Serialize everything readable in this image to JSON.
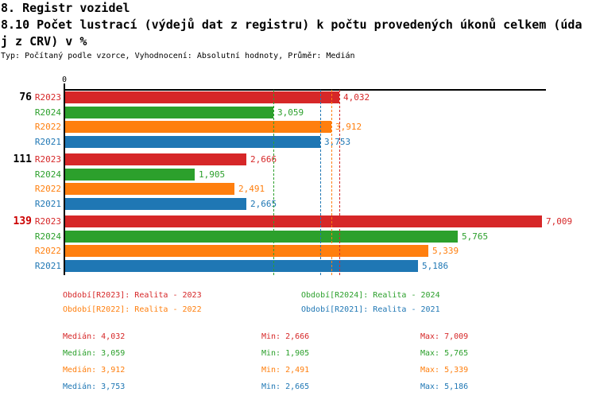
{
  "header": {
    "title": "8. Registr vozidel",
    "subtitle_line1": "8.10 Počet lustrací (výdejů dat z registru) k počtu provedených úkonů celkem (úda",
    "subtitle_line2": "j z CRV) v %",
    "meta": "Typ: Počítaný podle vzorce, Vyhodnocení: Absolutní hodnoty, Průměr: Medián"
  },
  "chart_data": {
    "type": "bar",
    "orientation": "horizontal",
    "title": "8.10 Počet lustrací (výdejů dat z registru) k počtu provedených úkonů celkem (údaj z CRV) v %",
    "x_axis": {
      "origin_label": "0",
      "min": 0,
      "max": 7070,
      "grid": false
    },
    "series": [
      {
        "id": "R2023",
        "name": "Realita - 2023",
        "color": "#d62728",
        "median": 4032,
        "min": 2666,
        "max": 7009
      },
      {
        "id": "R2024",
        "name": "Realita - 2024",
        "color": "#2ca02c",
        "median": 3059,
        "min": 1905,
        "max": 5765
      },
      {
        "id": "R2022",
        "name": "Realita - 2022",
        "color": "#ff7f0e",
        "median": 3912,
        "min": 2491,
        "max": 5339
      },
      {
        "id": "R2021",
        "name": "Realita - 2021",
        "color": "#1f77b4",
        "median": 3753,
        "min": 2665,
        "max": 5186
      }
    ],
    "categories": [
      "76",
      "111",
      "139"
    ],
    "category_colors": [
      "#000000",
      "#000000",
      "#cc0000"
    ],
    "values": [
      [
        4032,
        3059,
        3912,
        3753
      ],
      [
        2666,
        1905,
        2491,
        2665
      ],
      [
        7009,
        5765,
        5339,
        5186
      ]
    ],
    "median_lines": true,
    "legend_position": "bottom"
  },
  "legend": {
    "items": [
      {
        "label": "Období[R2023]: Realita - 2023",
        "color": "#d62728"
      },
      {
        "label": "Období[R2024]: Realita - 2024",
        "color": "#2ca02c"
      },
      {
        "label": "Období[R2022]: Realita - 2022",
        "color": "#ff7f0e"
      },
      {
        "label": "Období[R2021]: Realita - 2021",
        "color": "#1f77b4"
      }
    ]
  },
  "stats": {
    "rows": [
      {
        "color": "#d62728",
        "median": "Medián: 4,032",
        "min": "Min: 2,666",
        "max": "Max: 7,009"
      },
      {
        "color": "#2ca02c",
        "median": "Medián: 3,059",
        "min": "Min: 1,905",
        "max": "Max: 5,765"
      },
      {
        "color": "#ff7f0e",
        "median": "Medián: 3,912",
        "min": "Min: 2,491",
        "max": "Max: 5,339"
      },
      {
        "color": "#1f77b4",
        "median": "Medián: 3,753",
        "min": "Min: 2,665",
        "max": "Max: 5,186"
      }
    ]
  }
}
